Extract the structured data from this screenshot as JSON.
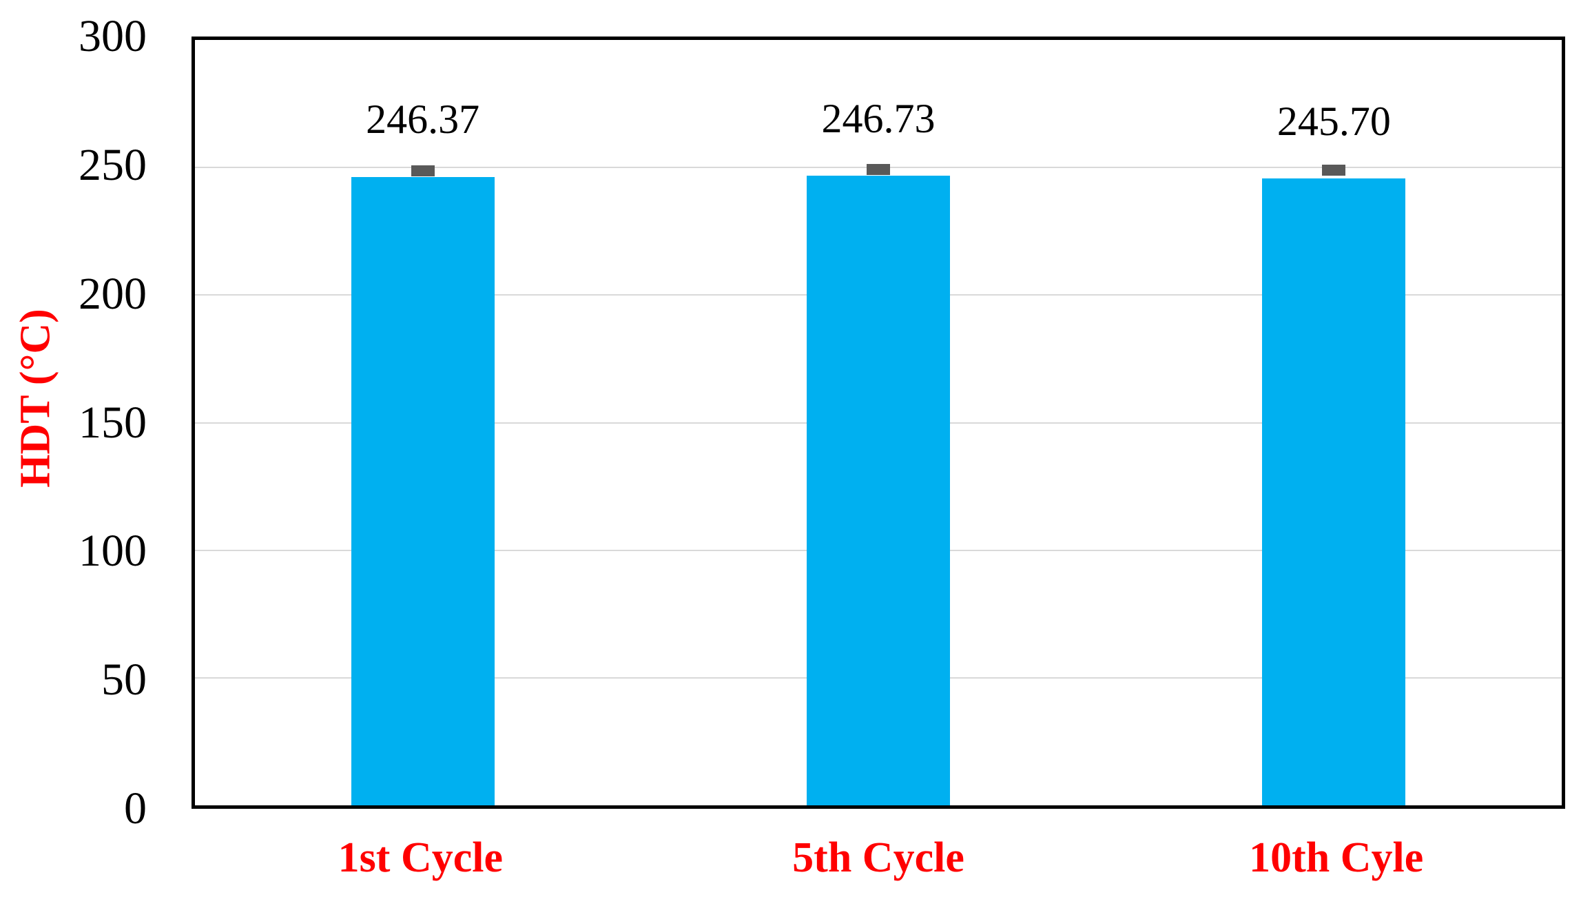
{
  "chart_data": {
    "type": "bar",
    "title": "",
    "categories": [
      "1st Cycle",
      "5th Cycle",
      "10th Cyle"
    ],
    "values": [
      246.37,
      246.73,
      245.7
    ],
    "value_labels": [
      "246.37",
      "246.73",
      "245.70"
    ],
    "error_bars": [
      1.9,
      1.9,
      1.0
    ],
    "ylabel": "HDT (°C)",
    "xlabel": "",
    "ylim": [
      0,
      300
    ],
    "yticks": [
      0,
      50,
      100,
      150,
      200,
      250,
      300
    ],
    "grid": "horizontal",
    "legend": "none",
    "colors": {
      "bar_fill": "#00B0F0",
      "axis_title": "#FF0000",
      "category_label": "#FF0000",
      "tick_label": "#000000",
      "gridline": "#D9D9D9",
      "error_bar": "#595959",
      "frame": "#000000"
    }
  }
}
